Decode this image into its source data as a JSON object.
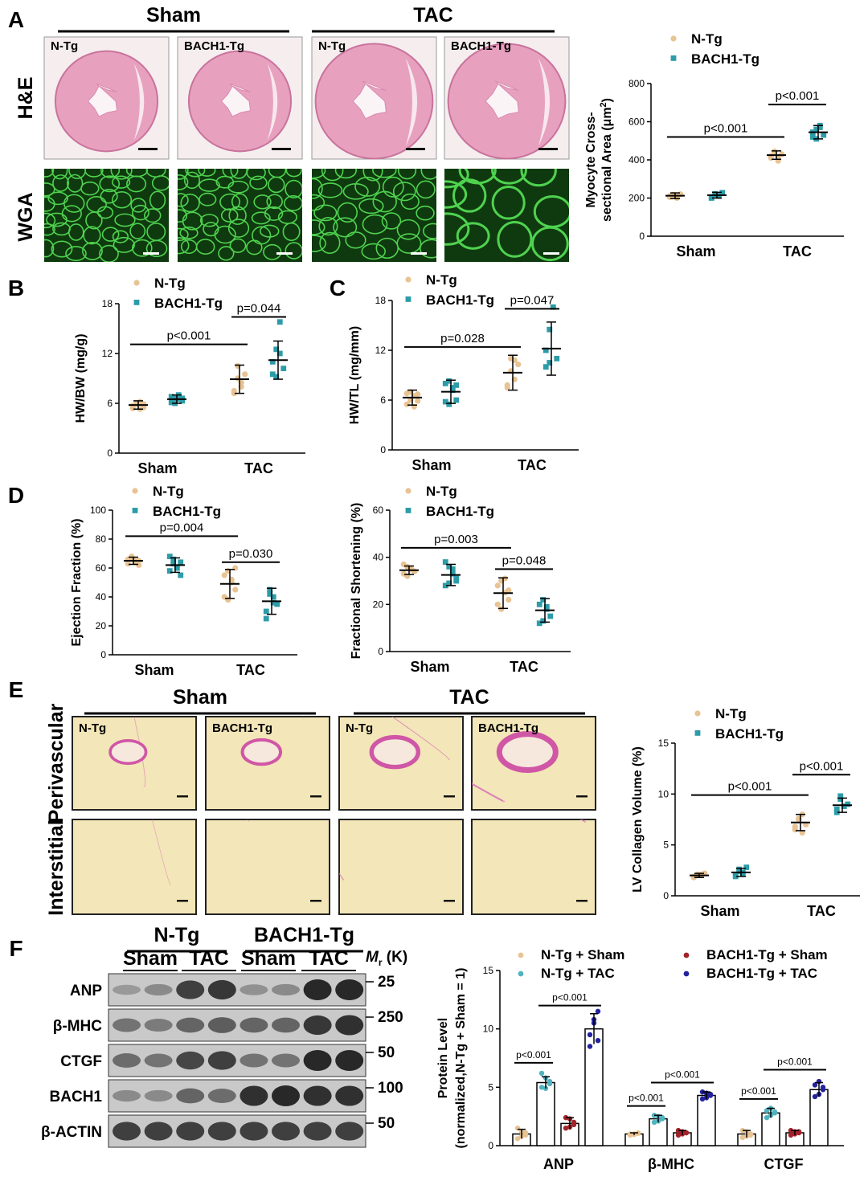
{
  "colors": {
    "ntg": "#E8C393",
    "bach": "#2C9CA8",
    "ntg_tac": "#4FB3BF",
    "bach_sham": "#A3232A",
    "bach_tac": "#23239E",
    "he": "#E7A1BF",
    "wga_bg": "#0F3A0F",
    "wga_line": "#4FD24F",
    "sirius_bg": "#F3E6B8"
  },
  "panelA": {
    "label": "A",
    "groups": [
      "Sham",
      "TAC"
    ],
    "tiles": [
      "N-Tg",
      "BACH1-Tg",
      "N-Tg",
      "BACH1-Tg"
    ],
    "rows": [
      "H&E",
      "WGA"
    ]
  },
  "panelE_images": {
    "label": "E",
    "groups": [
      "Sham",
      "TAC"
    ],
    "tiles": [
      "N-Tg",
      "BACH1-Tg",
      "N-Tg",
      "BACH1-Tg"
    ],
    "rows": [
      "Perivascular",
      "Interstitial"
    ]
  },
  "panelF": {
    "label": "F",
    "groups": [
      "N-Tg",
      "BACH1-Tg"
    ],
    "subgroups": [
      "Sham",
      "TAC",
      "Sham",
      "TAC"
    ],
    "mr_label": "M",
    "mr_sub": "r",
    "mr_unit": " (K)",
    "blots": [
      {
        "name": "ANP",
        "marker": "25",
        "intensity": [
          0.25,
          0.35,
          0.85,
          0.9,
          0.3,
          0.35,
          1.0,
          1.0
        ]
      },
      {
        "name": "β-MHC",
        "marker": "250",
        "intensity": [
          0.5,
          0.45,
          0.6,
          0.65,
          0.6,
          0.6,
          0.9,
          0.95
        ]
      },
      {
        "name": "CTGF",
        "marker": "50",
        "intensity": [
          0.55,
          0.5,
          0.8,
          0.85,
          0.5,
          0.5,
          1.0,
          1.0
        ]
      },
      {
        "name": "BACH1",
        "marker": "100",
        "intensity": [
          0.35,
          0.35,
          0.6,
          0.55,
          0.95,
          1.0,
          0.95,
          0.95
        ]
      },
      {
        "name": "β-ACTIN",
        "marker": "50",
        "intensity": [
          0.85,
          0.85,
          0.85,
          0.85,
          0.85,
          0.85,
          0.85,
          0.85
        ]
      }
    ]
  },
  "chart_data": [
    {
      "id": "A-plot",
      "type": "scatter",
      "ylabel": "Myocyte Cross-sectional Area (μm²)",
      "ylabel_lines": [
        "Myocyte Cross-",
        "sectional Area (μm"
      ],
      "ylabel_sup": "2",
      "ylabel_end": ")",
      "ylim": [
        0,
        800
      ],
      "yticks": [
        "0",
        "200",
        "400",
        "600",
        "800"
      ],
      "categories": [
        "Sham",
        "TAC"
      ],
      "legend": [
        "N-Tg",
        "BACH1-Tg"
      ],
      "series": [
        {
          "name": "N-Tg",
          "mean": [
            212,
            425
          ],
          "sd": [
            15,
            22
          ],
          "points": [
            [
              205,
              215,
              200,
              220,
              210,
              218,
              208
            ],
            [
              410,
              440,
              395,
              430,
              420,
              445,
              415
            ]
          ]
        },
        {
          "name": "BACH1-Tg",
          "mean": [
            215,
            545
          ],
          "sd": [
            15,
            35
          ],
          "points": [
            [
              205,
              222,
              210,
              228,
              200,
              218,
              212
            ],
            [
              520,
              560,
              580,
              530,
              545,
              510,
              570
            ]
          ]
        }
      ],
      "comparisons": [
        {
          "text": "p<0.001",
          "y": 520,
          "from": [
            0,
            0
          ],
          "to": [
            1,
            0
          ]
        },
        {
          "text": "p<0.001",
          "y": 690,
          "from": [
            1,
            0
          ],
          "to": [
            1,
            1
          ]
        }
      ]
    },
    {
      "id": "B-plot",
      "type": "scatter",
      "ylabel": "HW/BW (mg/g)",
      "ylim": [
        0,
        18
      ],
      "yticks": [
        "0",
        "6",
        "12",
        "18"
      ],
      "categories": [
        "Sham",
        "TAC"
      ],
      "legend": [
        "N-Tg",
        "BACH1-Tg"
      ],
      "series": [
        {
          "name": "N-Tg",
          "mean": [
            5.8,
            8.9
          ],
          "sd": [
            0.5,
            1.7
          ],
          "points": [
            [
              5.4,
              5.9,
              6.2,
              5.5,
              5.7,
              6.0,
              5.3,
              5.9
            ],
            [
              7.5,
              10.5,
              8.0,
              9.5,
              7.2,
              9.0,
              8.5
            ]
          ]
        },
        {
          "name": "BACH1-Tg",
          "mean": [
            6.5,
            11.2
          ],
          "sd": [
            0.5,
            2.3
          ],
          "points": [
            [
              6.1,
              6.6,
              7.0,
              6.3,
              6.8,
              6.0,
              6.5,
              6.6
            ],
            [
              9.5,
              12.5,
              15.8,
              10.2,
              11.0,
              9.2,
              12.0
            ]
          ]
        }
      ],
      "comparisons": [
        {
          "text": "p<0.001",
          "y": 13.1,
          "from": [
            0,
            0
          ],
          "to": [
            1,
            0
          ]
        },
        {
          "text": "p=0.044",
          "y": 16.4,
          "from": [
            1,
            0
          ],
          "to": [
            1,
            1
          ]
        }
      ]
    },
    {
      "id": "C-plot",
      "type": "scatter",
      "ylabel": "HW/TL (mg/mm)",
      "ylim": [
        0,
        18
      ],
      "yticks": [
        "0",
        "6",
        "12",
        "18"
      ],
      "categories": [
        "Sham",
        "TAC"
      ],
      "legend": [
        "N-Tg",
        "BACH1-Tg"
      ],
      "series": [
        {
          "name": "N-Tg",
          "mean": [
            6.3,
            9.3
          ],
          "sd": [
            0.9,
            2.1
          ],
          "points": [
            [
              5.5,
              7.0,
              6.5,
              5.9,
              6.8,
              6.0,
              5.2,
              6.7
            ],
            [
              7.5,
              11.0,
              8.5,
              10.3,
              7.8,
              9.5,
              10.8
            ]
          ]
        },
        {
          "name": "BACH1-Tg",
          "mean": [
            7.0,
            12.2
          ],
          "sd": [
            1.4,
            3.2
          ],
          "points": [
            [
              5.8,
              8.3,
              7.2,
              6.0,
              8.0,
              5.5,
              7.5,
              7.8
            ],
            [
              10.0,
              14.5,
              17.2,
              11.0,
              12.0,
              10.5
            ]
          ]
        }
      ],
      "comparisons": [
        {
          "text": "p=0.028",
          "y": 12.4,
          "from": [
            0,
            0
          ],
          "to": [
            1,
            0
          ]
        },
        {
          "text": "p=0.047",
          "y": 17.0,
          "from": [
            1,
            0
          ],
          "to": [
            1,
            1
          ]
        }
      ]
    },
    {
      "id": "D1-plot",
      "type": "scatter",
      "ylabel": "Ejection Fraction (%)",
      "ylim": [
        0,
        100
      ],
      "yticks": [
        "0",
        "20",
        "40",
        "60",
        "80",
        "100"
      ],
      "categories": [
        "Sham",
        "TAC"
      ],
      "legend": [
        "N-Tg",
        "BACH1-Tg"
      ],
      "series": [
        {
          "name": "N-Tg",
          "mean": [
            65,
            49
          ],
          "sd": [
            2.5,
            10
          ],
          "points": [
            [
              63,
              67,
              65,
              62,
              66,
              68,
              64,
              65
            ],
            [
              40,
              58,
              50,
              45,
              55,
              38,
              52,
              60
            ]
          ]
        },
        {
          "name": "BACH1-Tg",
          "mean": [
            62,
            37
          ],
          "sd": [
            5,
            9
          ],
          "points": [
            [
              58,
              66,
              60,
              55,
              68,
              63,
              60,
              64
            ],
            [
              30,
              45,
              40,
              35,
              25,
              42,
              36
            ]
          ]
        }
      ],
      "comparisons": [
        {
          "text": "p=0.004",
          "y": 82,
          "from": [
            0,
            0
          ],
          "to": [
            1,
            0
          ]
        },
        {
          "text": "p=0.030",
          "y": 64,
          "from": [
            1,
            0
          ],
          "to": [
            1,
            1
          ]
        }
      ]
    },
    {
      "id": "D2-plot",
      "type": "scatter",
      "ylabel": "Fractional Shortening (%)",
      "ylim": [
        0,
        60
      ],
      "yticks": [
        "0",
        "20",
        "40",
        "60"
      ],
      "categories": [
        "Sham",
        "TAC"
      ],
      "legend": [
        "N-Tg",
        "BACH1-Tg"
      ],
      "series": [
        {
          "name": "N-Tg",
          "mean": [
            34.5,
            24.8
          ],
          "sd": [
            1.8,
            6.5
          ],
          "points": [
            [
              33,
              36,
              35,
              34,
              37,
              32,
              35,
              34
            ],
            [
              20,
              30,
              25,
              22,
              28,
              18,
              31,
              26
            ]
          ]
        },
        {
          "name": "BACH1-Tg",
          "mean": [
            32.5,
            17.5
          ],
          "sd": [
            4.5,
            5
          ],
          "points": [
            [
              28,
              36,
              33,
              30,
              38,
              29,
              35,
              31
            ],
            [
              12,
              22,
              18,
              15,
              20,
              13,
              19
            ]
          ]
        }
      ],
      "comparisons": [
        {
          "text": "p=0.003",
          "y": 44,
          "from": [
            0,
            0
          ],
          "to": [
            1,
            0
          ]
        },
        {
          "text": "p=0.048",
          "y": 35,
          "from": [
            1,
            0
          ],
          "to": [
            1,
            1
          ]
        }
      ]
    },
    {
      "id": "E-plot",
      "type": "scatter",
      "ylabel": "LV Collagen Volume (%)",
      "ylim": [
        0,
        15
      ],
      "yticks": [
        "0",
        "5",
        "10",
        "15"
      ],
      "categories": [
        "Sham",
        "TAC"
      ],
      "legend": [
        "N-Tg",
        "BACH1-Tg"
      ],
      "series": [
        {
          "name": "N-Tg",
          "mean": [
            2.0,
            7.2
          ],
          "sd": [
            0.2,
            0.8
          ],
          "points": [
            [
              1.8,
              2.1,
              2.0,
              2.2,
              1.9,
              2.0,
              2.1
            ],
            [
              6.5,
              7.5,
              8.0,
              7.0,
              6.8,
              7.6,
              6.2
            ]
          ]
        },
        {
          "name": "BACH1-Tg",
          "mean": [
            2.3,
            8.9
          ],
          "sd": [
            0.4,
            0.7
          ],
          "points": [
            [
              1.9,
              2.6,
              2.2,
              2.8,
              2.0,
              2.4,
              2.3
            ],
            [
              8.2,
              9.5,
              8.8,
              9.0,
              8.5,
              9.8
            ]
          ]
        }
      ],
      "comparisons": [
        {
          "text": "p<0.001",
          "y": 9.9,
          "from": [
            0,
            0
          ],
          "to": [
            1,
            0
          ]
        },
        {
          "text": "p<0.001",
          "y": 11.9,
          "from": [
            1,
            0
          ],
          "to": [
            1,
            1
          ]
        }
      ]
    },
    {
      "id": "F-plot",
      "type": "bar",
      "ylabel": "Protein Level (normalized,N-Tg + Sham = 1)",
      "ylabel_lines": [
        "Protein Level",
        "(normalized,N-Tg + Sham = 1)"
      ],
      "ylim": [
        0,
        15
      ],
      "yticks": [
        "0",
        "5",
        "10",
        "15"
      ],
      "categories": [
        "ANP",
        "β-MHC",
        "CTGF"
      ],
      "legend": [
        "N-Tg + Sham",
        "N-Tg + TAC",
        "BACH1-Tg + Sham",
        "BACH1-Tg + TAC"
      ],
      "series": [
        {
          "name": "N-Tg + Sham",
          "values": [
            1.0,
            1.0,
            1.0
          ],
          "sd": [
            0.4,
            0.1,
            0.3
          ],
          "points": [
            [
              0.6,
              1.2,
              0.9,
              1.5,
              0.8,
              1.1
            ],
            [
              0.9,
              1.0,
              1.1,
              1.0,
              0.95,
              1.05
            ],
            [
              0.7,
              1.2,
              1.0,
              1.3,
              0.8,
              0.9
            ]
          ]
        },
        {
          "name": "N-Tg + TAC",
          "values": [
            5.4,
            2.3,
            2.8
          ],
          "sd": [
            0.5,
            0.3,
            0.4
          ],
          "points": [
            [
              5.0,
              5.8,
              5.5,
              6.2,
              4.9,
              5.3
            ],
            [
              2.0,
              2.5,
              2.3,
              2.6,
              2.1,
              2.4
            ],
            [
              2.4,
              3.2,
              2.8,
              3.0,
              2.6,
              2.9
            ]
          ]
        },
        {
          "name": "BACH1-Tg + Sham",
          "values": [
            1.9,
            1.1,
            1.1
          ],
          "sd": [
            0.5,
            0.2,
            0.2
          ],
          "points": [
            [
              1.5,
              2.3,
              1.8,
              2.4,
              1.6,
              2.0
            ],
            [
              0.9,
              1.2,
              1.1,
              1.3,
              1.0,
              1.1
            ],
            [
              0.9,
              1.2,
              1.1,
              1.3,
              1.0,
              1.2
            ]
          ]
        },
        {
          "name": "BACH1-Tg + TAC",
          "values": [
            10.0,
            4.3,
            4.8
          ],
          "sd": [
            1.3,
            0.3,
            0.6
          ],
          "points": [
            [
              8.5,
              10.5,
              11.5,
              9.5,
              10.8,
              9.0
            ],
            [
              4.0,
              4.5,
              4.3,
              4.6,
              4.1,
              4.4
            ],
            [
              4.2,
              5.5,
              4.8,
              5.2,
              4.4,
              5.0
            ]
          ]
        }
      ],
      "comparisons": [
        {
          "text": "p<0.001",
          "cat": 0,
          "from": 0,
          "to": 1,
          "y": 7.1
        },
        {
          "text": "p<0.001",
          "cat": 0,
          "from": 1,
          "to": 3,
          "y": 12.0
        },
        {
          "text": "p<0.001",
          "cat": 1,
          "from": 0,
          "to": 1,
          "y": 3.4
        },
        {
          "text": "p<0.001",
          "cat": 1,
          "from": 1,
          "to": 3,
          "y": 5.4
        },
        {
          "text": "p<0.001",
          "cat": 2,
          "from": 0,
          "to": 1,
          "y": 4.0
        },
        {
          "text": "p<0.001",
          "cat": 2,
          "from": 1,
          "to": 3,
          "y": 6.5
        }
      ]
    }
  ]
}
